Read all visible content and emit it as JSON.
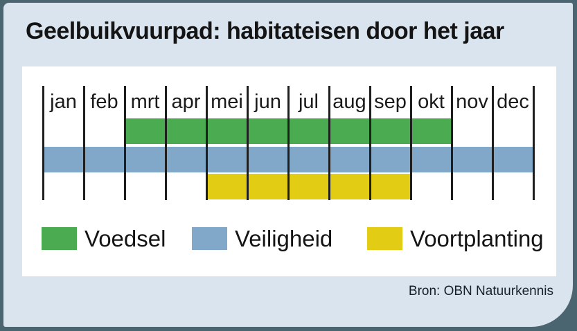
{
  "header": {
    "title": "Geelbuikvuurpad: habitateisen door het jaar"
  },
  "footer": {
    "source": "Bron: OBN Natuurkennis"
  },
  "colors": {
    "frame": "#4b6570",
    "card_background": "#d9e4ee",
    "panel_background": "#ffffff",
    "grid_line": "#1e1e1e",
    "text": "#141414",
    "voedsel_green": "#4aab50",
    "veiligheid_blue": "#81a8c9",
    "voortplanting_yellow": "#e3cc14"
  },
  "chart_data": {
    "type": "bar",
    "subtype": "gantt-month-timeline",
    "title": "Geelbuikvuurpad: habitateisen door het jaar",
    "categories": [
      "jan",
      "feb",
      "mrt",
      "apr",
      "mei",
      "jun",
      "jul",
      "aug",
      "sep",
      "okt",
      "nov",
      "dec"
    ],
    "grid": "vertical-month-boundary-lines",
    "legend_position": "bottom",
    "series": [
      {
        "name": "Voedsel",
        "color": "#4aab50",
        "start_month": "mrt",
        "end_month": "okt",
        "start_index": 2,
        "end_index": 9,
        "months_spanned": 8
      },
      {
        "name": "Veiligheid",
        "color": "#81a8c9",
        "start_month": "jan",
        "end_month": "dec",
        "start_index": 0,
        "end_index": 11,
        "months_spanned": 12
      },
      {
        "name": "Voortplanting",
        "color": "#e3cc14",
        "start_month": "mei",
        "end_month": "sep",
        "start_index": 4,
        "end_index": 8,
        "months_spanned": 5
      }
    ],
    "source": "Bron: OBN Natuurkennis"
  }
}
